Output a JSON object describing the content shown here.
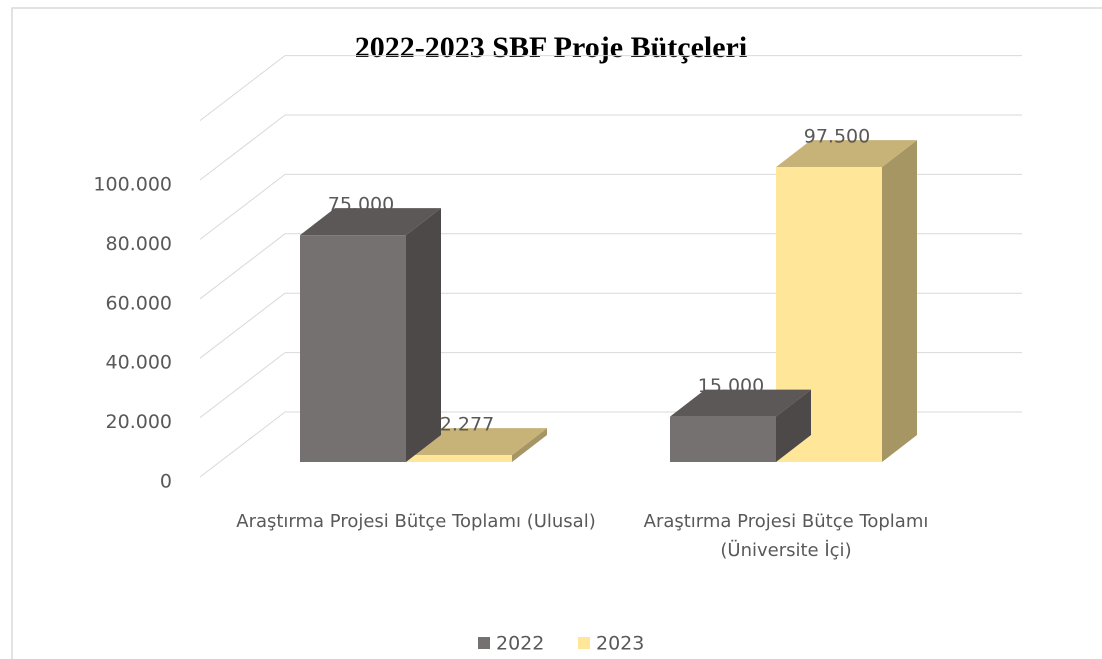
{
  "chart_data": {
    "type": "bar3d",
    "title": "2022-2023 SBF Proje Bütçeleri",
    "categories": [
      "Araştırma Projesi Bütçe Toplamı (Ulusal)",
      "Araştırma Projesi Bütçe Toplamı (Üniversite İçi)"
    ],
    "series": [
      {
        "name": "2022",
        "color": "#767171",
        "values": [
          75000,
          15000
        ],
        "value_labels": [
          "75.000",
          "15.000"
        ]
      },
      {
        "name": "2023",
        "color": "#ffe699",
        "values": [
          2277,
          97500
        ],
        "value_labels": [
          "2.277",
          "97.500"
        ]
      }
    ],
    "ylim": [
      0,
      120000
    ],
    "yticks": [
      0,
      {
        "value": 20000,
        "label": "20.000"
      },
      {
        "value": 40000,
        "label": "40.000"
      },
      {
        "value": 60000,
        "label": "60.000"
      },
      {
        "value": 80000,
        "label": "80.000"
      },
      {
        "value": 100000,
        "label": "100.000"
      }
    ],
    "grid": true,
    "legend": "bottom"
  }
}
